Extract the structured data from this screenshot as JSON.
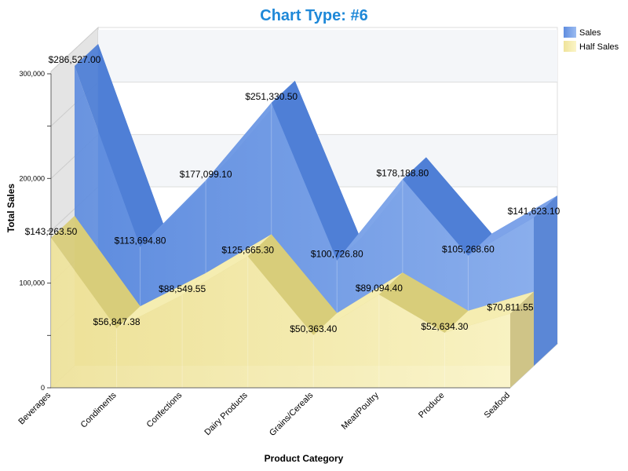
{
  "chart_data": {
    "type": "area",
    "variant": "3d",
    "title": "Chart Type: #6",
    "xlabel": "Product Category",
    "ylabel": "Total Sales",
    "categories": [
      "Beverages",
      "Condiments",
      "Confections",
      "Dairy Products",
      "Grains/Cereals",
      "Meat/Poultry",
      "Produce",
      "Seafood"
    ],
    "ylim": [
      0,
      300000
    ],
    "yticks": [
      0,
      100000,
      200000,
      300000
    ],
    "ytick_labels": [
      "0",
      "100,000",
      "200,000",
      "300,000"
    ],
    "grid": true,
    "legend_position": "top-right",
    "series": [
      {
        "name": "Sales",
        "color": "#6f9be6",
        "values": [
          286527.0,
          113694.8,
          177099.1,
          251330.5,
          100726.8,
          178188.8,
          105268.6,
          141623.1
        ],
        "labels": [
          "$286,527.00",
          "$113,694.80",
          "$177,099.10",
          "$251,330.50",
          "$100,726.80",
          "$178,188.80",
          "$105,268.60",
          "$141,623.10"
        ]
      },
      {
        "name": "Half Sales",
        "color": "#f3e8a6",
        "values": [
          143263.5,
          56847.38,
          88549.55,
          125665.3,
          50363.4,
          89094.4,
          52634.3,
          70811.55
        ],
        "labels": [
          "$143,263.50",
          "$56,847.38",
          "$88,549.55",
          "$125,665.30",
          "$50,363.40",
          "$89,094.40",
          "$52,634.30",
          "$70,811.55"
        ]
      }
    ]
  }
}
